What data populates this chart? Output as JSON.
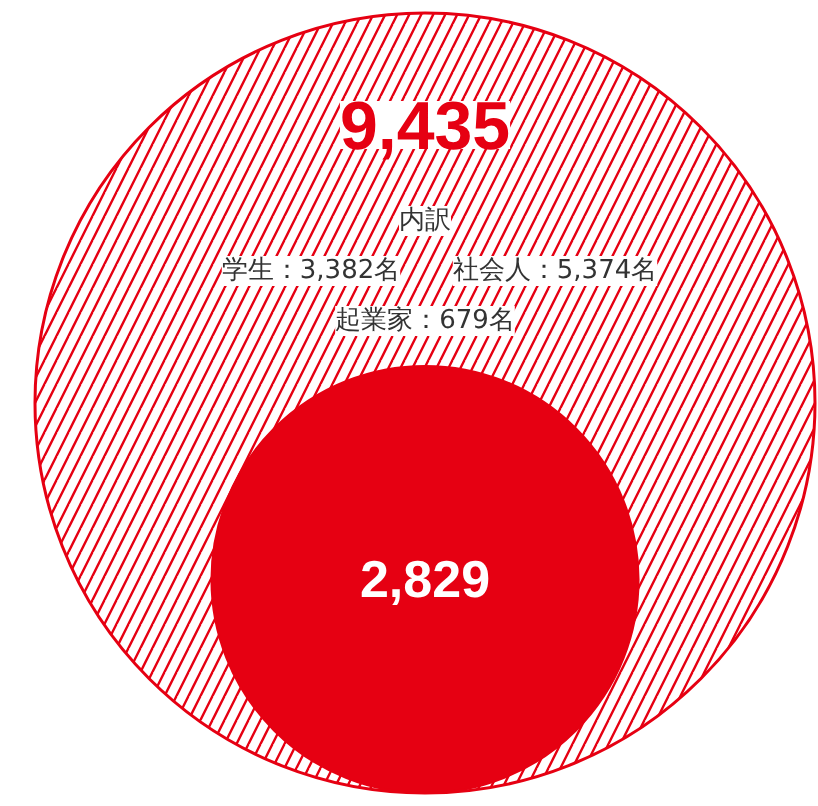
{
  "chart_data": {
    "type": "other",
    "categories": [
      null,
      null
    ],
    "values": [
      9435,
      2829
    ],
    "value_labels": [
      "9,435",
      "2,829"
    ],
    "colors": [
      "#e60012",
      "#e60012"
    ],
    "annotations": [
      "内訳",
      "学生：3,382名",
      "社会人：5,374名",
      "起業家：679名"
    ]
  }
}
